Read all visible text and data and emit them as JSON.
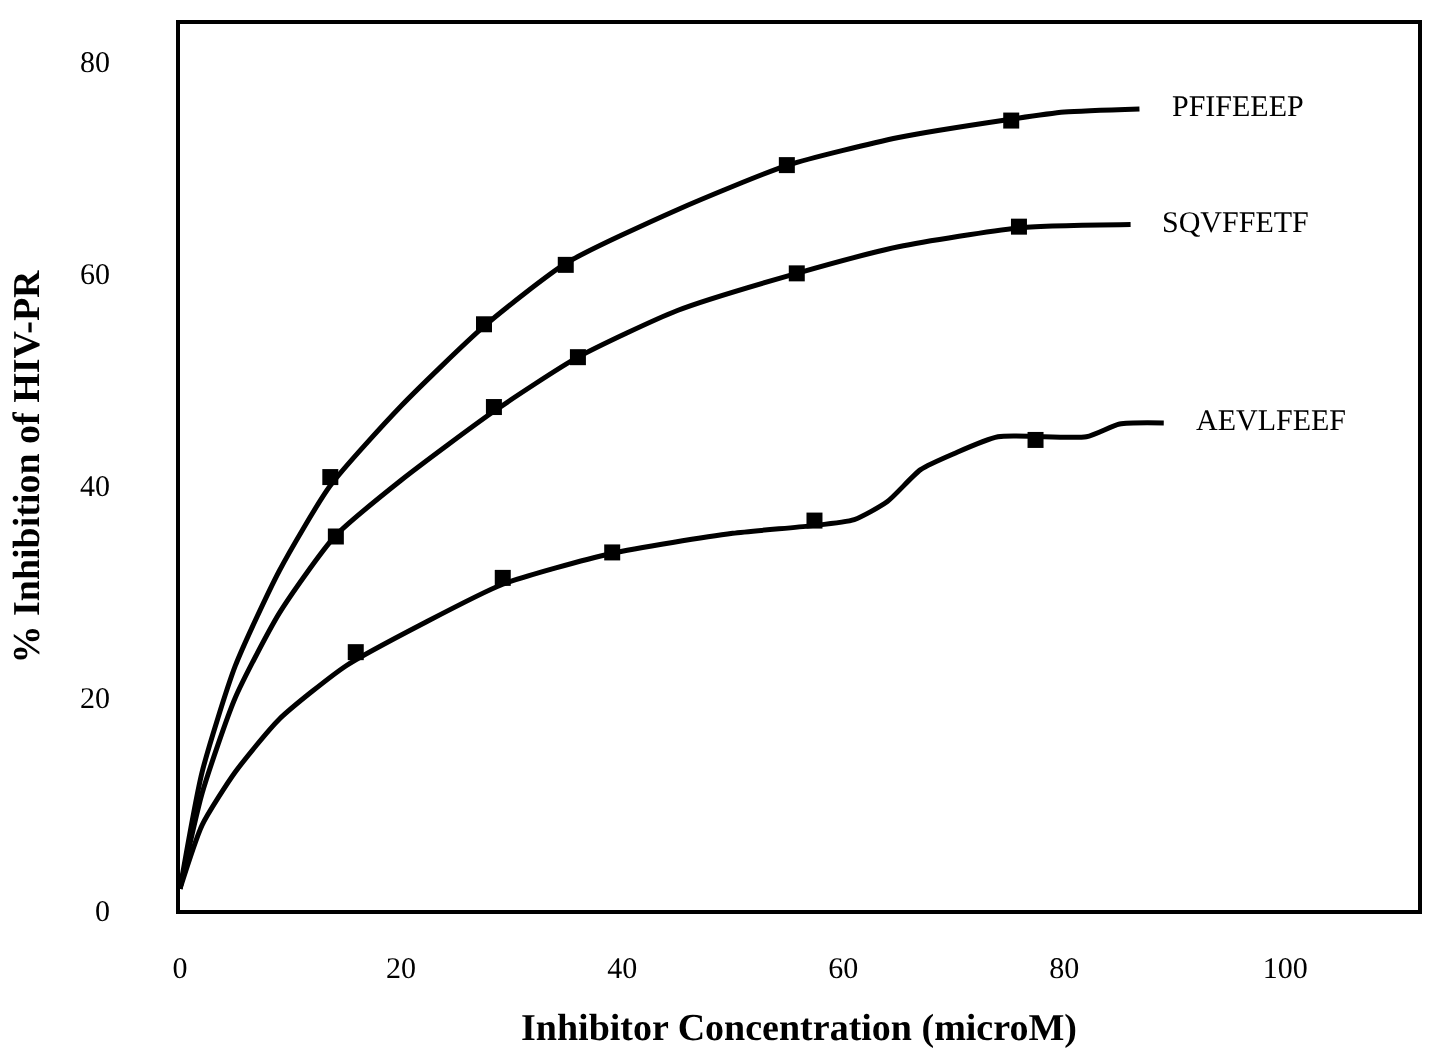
{
  "chart_data": {
    "type": "line",
    "xlabel": "Inhibitor Concentration (microM)",
    "ylabel": "% Inhibition of HIV-PR",
    "xlim": [
      0,
      112
    ],
    "ylim": [
      0,
      83.5
    ],
    "xticks": [
      0,
      20,
      40,
      60,
      80,
      100
    ],
    "yticks": [
      0,
      20,
      40,
      60,
      80
    ],
    "legend": false,
    "marker": "square",
    "series": [
      {
        "type": "scatter",
        "color": "#000000",
        "x": [
          13.6,
          27.5,
          34.9,
          54.9,
          75.2
        ],
        "values": [
          40.8,
          55.2,
          60.8,
          70.2,
          74.4
        ]
      },
      {
        "type": "scatter",
        "color": "#000000",
        "x": [
          14.1,
          28.4,
          36.0,
          55.8,
          75.9
        ],
        "values": [
          35.2,
          47.4,
          52.1,
          60.0,
          64.4
        ]
      },
      {
        "type": "scatter",
        "color": "#000000",
        "x": [
          15.9,
          29.2,
          39.1,
          57.4,
          77.4
        ],
        "values": [
          24.3,
          31.3,
          33.7,
          36.7,
          44.3
        ]
      },
      {
        "name": "PFIFEEEP",
        "marker": "none",
        "color": "#000000",
        "x": [
          0,
          2,
          5,
          9,
          13.6,
          20,
          27.5,
          35,
          45,
          55,
          65,
          75,
          80,
          86.8
        ],
        "values": [
          2,
          13,
          23,
          32,
          40,
          47.5,
          55,
          61,
          66,
          70.2,
          72.8,
          74.5,
          75.2,
          75.5
        ]
      },
      {
        "name": "SQVFFETF",
        "marker": "none",
        "color": "#000000",
        "x": [
          0,
          2,
          5,
          9,
          14,
          20,
          28.4,
          36,
          45,
          55.8,
          65,
          76,
          86
        ],
        "values": [
          2,
          11,
          20,
          28,
          35.2,
          40.5,
          47,
          52.1,
          56.5,
          60,
          62.5,
          64.3,
          64.6
        ]
      },
      {
        "name": "AEVLFEEF",
        "marker": "none",
        "color": "#000000",
        "x": [
          0,
          2,
          5,
          9,
          15,
          22,
          29.2,
          39,
          50,
          57,
          61,
          64,
          67,
          70,
          74,
          82,
          85,
          89
        ],
        "values": [
          2,
          8,
          13,
          18,
          23,
          27,
          30.7,
          33.6,
          35.5,
          36.2,
          36.8,
          38.5,
          41.5,
          43,
          44.6,
          44.6,
          45.8,
          45.9
        ]
      }
    ]
  }
}
